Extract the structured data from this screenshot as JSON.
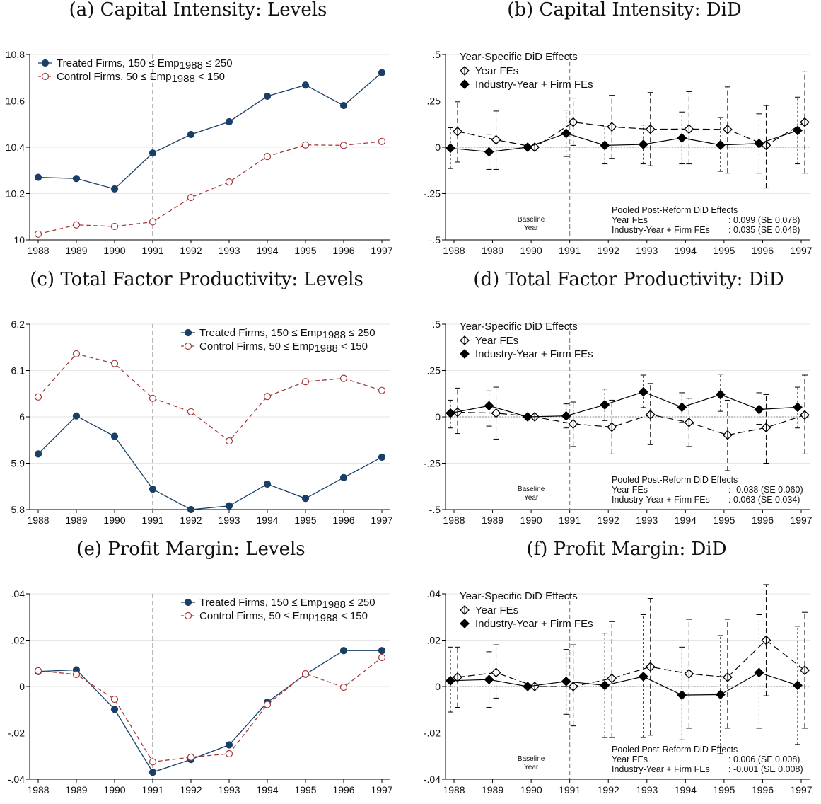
{
  "colors": {
    "treated": "#1a3f66",
    "control": "#a33a3a",
    "did": "#000000",
    "grid": "#e6e6e6",
    "ref": "#888888"
  },
  "chart_data": [
    {
      "id": "a",
      "type": "line",
      "title": "(a) Capital Intensity: Levels",
      "x": [
        1988,
        1989,
        1990,
        1991,
        1992,
        1993,
        1994,
        1995,
        1996,
        1997
      ],
      "ylim": [
        10,
        10.8
      ],
      "yticks": [
        10,
        10.2,
        10.4,
        10.6,
        10.8
      ],
      "ytick_labels": [
        "10",
        "10.2",
        "10.4",
        "10.6",
        "10.8"
      ],
      "vline": 1991,
      "legend_position": "top-left",
      "series": [
        {
          "name_lead": "Treated Firms, 150 ≤ Emp",
          "name_sub": "1988",
          "name_tail": " ≤ 250",
          "style": "treated",
          "values": [
            10.27,
            10.265,
            10.22,
            10.375,
            10.455,
            10.51,
            10.62,
            10.668,
            10.58,
            10.722
          ]
        },
        {
          "name_lead": "Control Firms,  50  ≤ Emp",
          "name_sub": "1988",
          "name_tail": "  < 150",
          "style": "control",
          "values": [
            10.025,
            10.065,
            10.058,
            10.078,
            10.183,
            10.25,
            10.36,
            10.41,
            10.408,
            10.425
          ]
        }
      ]
    },
    {
      "id": "b",
      "type": "scatter",
      "title": "(b) Capital Intensity: DiD",
      "x": [
        1988,
        1989,
        1990,
        1991,
        1992,
        1993,
        1994,
        1995,
        1996,
        1997
      ],
      "ylim": [
        -0.5,
        0.5
      ],
      "yticks": [
        -0.5,
        -0.25,
        0,
        0.25,
        0.5
      ],
      "ytick_labels": [
        "-.5",
        "-.25",
        "0",
        ".25",
        ".5"
      ],
      "vline": 1991,
      "legend_position": "top-left",
      "legend_title": "Year-Specific DiD Effects",
      "baseline_label": [
        "Baseline",
        "Year"
      ],
      "pooled": {
        "title": "Pooled Post-Reform DiD Effects",
        "rows": [
          {
            "label": "Year FEs",
            "value": ": 0.099 (SE 0.078)"
          },
          {
            "label": "Industry-Year + Firm FEs",
            "value": ": 0.035 (SE 0.048)"
          }
        ]
      },
      "series": [
        {
          "name": "Year FEs",
          "style": "hollow",
          "values": [
            0.085,
            0.04,
            0,
            0.135,
            0.11,
            0.097,
            0.098,
            0.096,
            0.01,
            0.135
          ],
          "ci_low": [
            -0.08,
            -0.12,
            0,
            0.01,
            -0.06,
            -0.1,
            -0.09,
            -0.14,
            -0.22,
            -0.14
          ],
          "ci_high": [
            0.245,
            0.195,
            0,
            0.265,
            0.28,
            0.295,
            0.3,
            0.325,
            0.225,
            0.41
          ]
        },
        {
          "name": "Industry-Year + Firm FEs",
          "style": "solid",
          "values": [
            -0.005,
            -0.025,
            0,
            0.075,
            0.01,
            0.015,
            0.05,
            0.012,
            0.02,
            0.09
          ],
          "ci_low": [
            -0.115,
            -0.12,
            0,
            -0.05,
            -0.09,
            -0.09,
            -0.09,
            -0.13,
            -0.14,
            -0.09
          ],
          "ci_high": [
            0.105,
            0.07,
            0,
            0.2,
            0.11,
            0.12,
            0.19,
            0.16,
            0.18,
            0.27
          ]
        }
      ]
    },
    {
      "id": "c",
      "type": "line",
      "title": "(c) Total Factor Productivity: Levels",
      "x": [
        1988,
        1989,
        1990,
        1991,
        1992,
        1993,
        1994,
        1995,
        1996,
        1997
      ],
      "ylim": [
        5.8,
        6.2
      ],
      "yticks": [
        5.8,
        5.9,
        6,
        6.1,
        6.2
      ],
      "ytick_labels": [
        "5.8",
        "5.9",
        "6",
        "6.1",
        "6.2"
      ],
      "vline": 1991,
      "legend_position": "top-right",
      "series": [
        {
          "name_lead": "Treated Firms, 150 ≤ Emp",
          "name_sub": "1988",
          "name_tail": " ≤ 250",
          "style": "treated",
          "values": [
            5.92,
            6.002,
            5.958,
            5.844,
            5.8,
            5.808,
            5.855,
            5.824,
            5.869,
            5.913
          ]
        },
        {
          "name_lead": "Control Firms,  50  ≤ Emp",
          "name_sub": "1988",
          "name_tail": "  < 150",
          "style": "control",
          "values": [
            6.043,
            6.136,
            6.115,
            6.04,
            6.011,
            5.948,
            6.044,
            6.076,
            6.083,
            6.057
          ]
        }
      ]
    },
    {
      "id": "d",
      "type": "scatter",
      "title": "(d) Total Factor Productivity: DiD",
      "x": [
        1988,
        1989,
        1990,
        1991,
        1992,
        1993,
        1994,
        1995,
        1996,
        1997
      ],
      "ylim": [
        -0.5,
        0.5
      ],
      "yticks": [
        -0.5,
        -0.25,
        0,
        0.25,
        0.5
      ],
      "ytick_labels": [
        "-.5",
        "-.25",
        "0",
        ".25",
        ".5"
      ],
      "vline": 1991,
      "legend_position": "top-left",
      "legend_title": "Year-Specific DiD Effects",
      "baseline_label": [
        "Baseline",
        "Year"
      ],
      "pooled": {
        "title": "Pooled Post-Reform DiD Effects",
        "rows": [
          {
            "label": "Year FEs",
            "value": ": -0.038 (SE 0.060)"
          },
          {
            "label": "Industry-Year + Firm FEs",
            "value": ": 0.063 (SE 0.034)"
          }
        ]
      },
      "series": [
        {
          "name": "Year FEs",
          "style": "hollow",
          "values": [
            0.025,
            0.02,
            0,
            -0.038,
            -0.055,
            0.012,
            -0.03,
            -0.098,
            -0.058,
            0.01
          ],
          "ci_low": [
            -0.09,
            -0.12,
            0,
            -0.16,
            -0.2,
            -0.15,
            -0.16,
            -0.29,
            -0.25,
            -0.2
          ],
          "ci_high": [
            0.155,
            0.16,
            0,
            0.08,
            0.09,
            0.18,
            0.1,
            0.09,
            0.12,
            0.225
          ]
        },
        {
          "name": "Industry-Year + Firm FEs",
          "style": "solid",
          "values": [
            0.02,
            0.06,
            0,
            0.005,
            0.065,
            0.135,
            0.052,
            0.12,
            0.04,
            0.052
          ],
          "ci_low": [
            -0.06,
            -0.05,
            0,
            -0.06,
            -0.02,
            0.05,
            -0.03,
            0.03,
            -0.04,
            -0.06
          ],
          "ci_high": [
            0.09,
            0.14,
            0,
            0.07,
            0.15,
            0.225,
            0.13,
            0.23,
            0.13,
            0.16
          ]
        }
      ]
    },
    {
      "id": "e",
      "type": "line",
      "title": "(e) Profit Margin: Levels",
      "x": [
        1988,
        1989,
        1990,
        1991,
        1992,
        1993,
        1994,
        1995,
        1996,
        1997
      ],
      "ylim": [
        -0.04,
        0.04
      ],
      "yticks": [
        -0.04,
        -0.02,
        0,
        0.02,
        0.04
      ],
      "ytick_labels": [
        "-.04",
        "-.02",
        "0",
        ".02",
        ".04"
      ],
      "vline": 1991,
      "legend_position": "top-right",
      "series": [
        {
          "name_lead": "Treated Firms, 150 ≤ Emp",
          "name_sub": "1988",
          "name_tail": " ≤ 250",
          "style": "treated",
          "values": [
            0.0065,
            0.0072,
            -0.0098,
            -0.037,
            -0.0315,
            -0.0252,
            -0.0068,
            0.0053,
            0.0155,
            0.0155
          ]
        },
        {
          "name_lead": "Control Firms,  50  ≤ Emp",
          "name_sub": "1988",
          "name_tail": "  < 150",
          "style": "control",
          "values": [
            0.0068,
            0.0052,
            -0.0055,
            -0.0325,
            -0.0305,
            -0.029,
            -0.0078,
            0.0055,
            -0.0003,
            0.0125
          ]
        }
      ]
    },
    {
      "id": "f",
      "type": "scatter",
      "title": "(f) Profit Margin: DiD",
      "x": [
        1988,
        1989,
        1990,
        1991,
        1992,
        1993,
        1994,
        1995,
        1996,
        1997
      ],
      "ylim": [
        -0.04,
        0.04
      ],
      "yticks": [
        -0.04,
        -0.02,
        0,
        0.02,
        0.04
      ],
      "ytick_labels": [
        "-.04",
        "-.02",
        "0",
        ".02",
        ".04"
      ],
      "vline": 1991,
      "legend_position": "top-left",
      "legend_title": "Year-Specific DiD Effects",
      "baseline_label": [
        "Baseline",
        "Year"
      ],
      "pooled": {
        "title": "Pooled Post-Reform DiD Effects",
        "rows": [
          {
            "label": "Year FEs",
            "value": ": 0.006 (SE 0.008)"
          },
          {
            "label": "Industry-Year + Firm FEs",
            "value": ": -0.001 (SE 0.008)"
          }
        ]
      },
      "series": [
        {
          "name": "Year FEs",
          "style": "hollow",
          "values": [
            0.004,
            0.006,
            0,
            0,
            0.0035,
            0.0085,
            0.0055,
            0.004,
            0.02,
            0.007
          ],
          "ci_low": [
            -0.009,
            -0.005,
            0,
            -0.017,
            -0.022,
            -0.021,
            -0.018,
            -0.018,
            -0.004,
            -0.018
          ],
          "ci_high": [
            0.017,
            0.018,
            0,
            0.018,
            0.028,
            0.038,
            0.029,
            0.029,
            0.044,
            0.032
          ]
        },
        {
          "name": "Industry-Year + Firm FEs",
          "style": "solid",
          "values": [
            0.0025,
            0.003,
            0,
            0.0022,
            0.0005,
            0.0043,
            -0.0037,
            -0.0035,
            0.006,
            0.0005
          ],
          "ci_low": [
            -0.011,
            -0.009,
            0,
            -0.012,
            -0.022,
            -0.022,
            -0.023,
            -0.029,
            -0.018,
            -0.025
          ],
          "ci_high": [
            0.017,
            0.015,
            0,
            0.016,
            0.023,
            0.031,
            0.017,
            0.022,
            0.031,
            0.026
          ]
        }
      ]
    }
  ]
}
